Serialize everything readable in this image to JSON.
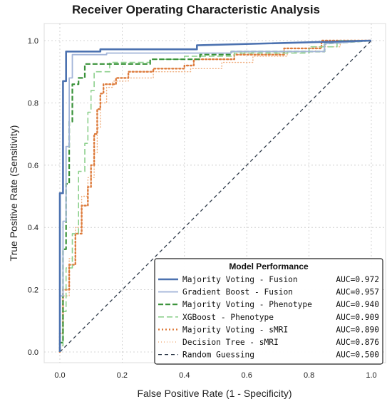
{
  "chart_data": {
    "type": "line",
    "title": "Receiver Operating Characteristic Analysis",
    "xlabel": "False Positive Rate (1 - Specificity)",
    "ylabel": "True Positive Rate (Sensitivity)",
    "xlim": [
      0,
      1
    ],
    "ylim": [
      0,
      1
    ],
    "xticks": [
      "0.0",
      "0.2",
      "0.4",
      "0.6",
      "0.8",
      "1.0"
    ],
    "yticks": [
      "0.0",
      "0.2",
      "0.4",
      "0.6",
      "0.8",
      "1.0"
    ],
    "grid": true,
    "legend": {
      "title": "Model Performance",
      "placement": "bottom-right"
    },
    "series": [
      {
        "name": "Majority Voting - Fusion",
        "auc": "AUC=0.972",
        "color": "#4c72b0",
        "dash": "solid",
        "width": 2.6,
        "points": [
          [
            0,
            0
          ],
          [
            0,
            0.31
          ],
          [
            0,
            0.51
          ],
          [
            0.01,
            0.51
          ],
          [
            0.01,
            0.87
          ],
          [
            0.02,
            0.87
          ],
          [
            0.02,
            0.965
          ],
          [
            0.13,
            0.965
          ],
          [
            0.13,
            0.972
          ],
          [
            0.44,
            0.972
          ],
          [
            0.44,
            0.985
          ],
          [
            1,
            1
          ]
        ]
      },
      {
        "name": "Gradient Boost - Fusion",
        "auc": "AUC=0.957",
        "color": "#a3b5d9",
        "dash": "solid",
        "width": 1.8,
        "points": [
          [
            0,
            0
          ],
          [
            0,
            0.18
          ],
          [
            0.01,
            0.18
          ],
          [
            0.01,
            0.42
          ],
          [
            0.02,
            0.42
          ],
          [
            0.02,
            0.66
          ],
          [
            0.03,
            0.66
          ],
          [
            0.03,
            0.88
          ],
          [
            0.04,
            0.88
          ],
          [
            0.04,
            0.955
          ],
          [
            0.15,
            0.955
          ],
          [
            0.15,
            0.96
          ],
          [
            0.55,
            0.96
          ],
          [
            0.55,
            0.965
          ],
          [
            0.85,
            0.965
          ],
          [
            0.85,
            0.99
          ],
          [
            1,
            1
          ]
        ]
      },
      {
        "name": "Majority Voting - Phenotype",
        "auc": "AUC=0.940",
        "color": "#3a923a",
        "dash": "7,3",
        "width": 2.2,
        "points": [
          [
            0,
            0
          ],
          [
            0,
            0.03
          ],
          [
            0.01,
            0.03
          ],
          [
            0.01,
            0.33
          ],
          [
            0.02,
            0.33
          ],
          [
            0.02,
            0.54
          ],
          [
            0.03,
            0.54
          ],
          [
            0.03,
            0.74
          ],
          [
            0.04,
            0.74
          ],
          [
            0.04,
            0.86
          ],
          [
            0.06,
            0.86
          ],
          [
            0.06,
            0.88
          ],
          [
            0.08,
            0.88
          ],
          [
            0.08,
            0.925
          ],
          [
            0.29,
            0.925
          ],
          [
            0.29,
            0.94
          ],
          [
            0.45,
            0.94
          ],
          [
            0.45,
            0.955
          ],
          [
            0.55,
            0.955
          ],
          [
            0.55,
            0.965
          ],
          [
            0.85,
            0.965
          ],
          [
            0.85,
            0.99
          ],
          [
            1,
            1
          ]
        ]
      },
      {
        "name": "XGBoost - Phenotype",
        "auc": "AUC=0.909",
        "color": "#8dd08d",
        "dash": "8,4",
        "width": 1.6,
        "points": [
          [
            0,
            0
          ],
          [
            0,
            0.02
          ],
          [
            0.01,
            0.02
          ],
          [
            0.01,
            0.13
          ],
          [
            0.02,
            0.13
          ],
          [
            0.02,
            0.27
          ],
          [
            0.04,
            0.27
          ],
          [
            0.04,
            0.38
          ],
          [
            0.06,
            0.38
          ],
          [
            0.06,
            0.58
          ],
          [
            0.08,
            0.58
          ],
          [
            0.08,
            0.67
          ],
          [
            0.09,
            0.67
          ],
          [
            0.09,
            0.77
          ],
          [
            0.1,
            0.77
          ],
          [
            0.1,
            0.84
          ],
          [
            0.11,
            0.84
          ],
          [
            0.11,
            0.9
          ],
          [
            0.16,
            0.9
          ],
          [
            0.16,
            0.93
          ],
          [
            0.29,
            0.93
          ],
          [
            0.29,
            0.94
          ],
          [
            0.4,
            0.94
          ],
          [
            0.4,
            0.95
          ],
          [
            0.56,
            0.95
          ],
          [
            0.56,
            0.96
          ],
          [
            0.8,
            0.96
          ],
          [
            0.8,
            0.98
          ],
          [
            0.89,
            0.98
          ],
          [
            0.89,
            1
          ],
          [
            1,
            1
          ]
        ]
      },
      {
        "name": "Majority Voting - sMRI",
        "auc": "AUC=0.890",
        "color": "#dd7b3c",
        "dash": "2,3",
        "width": 2.4,
        "points": [
          [
            0,
            0
          ],
          [
            0,
            0.06
          ],
          [
            0.01,
            0.06
          ],
          [
            0.01,
            0.2
          ],
          [
            0.03,
            0.2
          ],
          [
            0.03,
            0.28
          ],
          [
            0.05,
            0.28
          ],
          [
            0.05,
            0.38
          ],
          [
            0.07,
            0.38
          ],
          [
            0.07,
            0.47
          ],
          [
            0.09,
            0.47
          ],
          [
            0.09,
            0.53
          ],
          [
            0.1,
            0.53
          ],
          [
            0.1,
            0.6
          ],
          [
            0.11,
            0.6
          ],
          [
            0.11,
            0.7
          ],
          [
            0.12,
            0.7
          ],
          [
            0.12,
            0.78
          ],
          [
            0.13,
            0.78
          ],
          [
            0.13,
            0.83
          ],
          [
            0.14,
            0.83
          ],
          [
            0.14,
            0.86
          ],
          [
            0.18,
            0.86
          ],
          [
            0.18,
            0.88
          ],
          [
            0.22,
            0.88
          ],
          [
            0.22,
            0.9
          ],
          [
            0.3,
            0.9
          ],
          [
            0.3,
            0.91
          ],
          [
            0.4,
            0.91
          ],
          [
            0.4,
            0.92
          ],
          [
            0.43,
            0.92
          ],
          [
            0.43,
            0.94
          ],
          [
            0.56,
            0.94
          ],
          [
            0.56,
            0.955
          ],
          [
            0.72,
            0.955
          ],
          [
            0.72,
            0.975
          ],
          [
            0.84,
            0.975
          ],
          [
            0.84,
            1
          ],
          [
            1,
            1
          ]
        ]
      },
      {
        "name": "Decision Tree - sMRI",
        "auc": "AUC=0.876",
        "color": "#f0b081",
        "dash": "1,3",
        "width": 1.4,
        "points": [
          [
            0,
            0
          ],
          [
            0,
            0.02
          ],
          [
            0.01,
            0.02
          ],
          [
            0.01,
            0.18
          ],
          [
            0.03,
            0.18
          ],
          [
            0.03,
            0.3
          ],
          [
            0.05,
            0.3
          ],
          [
            0.05,
            0.4
          ],
          [
            0.07,
            0.4
          ],
          [
            0.07,
            0.5
          ],
          [
            0.09,
            0.5
          ],
          [
            0.09,
            0.56
          ],
          [
            0.11,
            0.56
          ],
          [
            0.11,
            0.64
          ],
          [
            0.12,
            0.64
          ],
          [
            0.12,
            0.72
          ],
          [
            0.13,
            0.72
          ],
          [
            0.13,
            0.8
          ],
          [
            0.15,
            0.8
          ],
          [
            0.15,
            0.85
          ],
          [
            0.17,
            0.85
          ],
          [
            0.17,
            0.87
          ],
          [
            0.22,
            0.87
          ],
          [
            0.22,
            0.88
          ],
          [
            0.3,
            0.88
          ],
          [
            0.3,
            0.9
          ],
          [
            0.42,
            0.9
          ],
          [
            0.42,
            0.91
          ],
          [
            0.52,
            0.91
          ],
          [
            0.52,
            0.93
          ],
          [
            0.62,
            0.93
          ],
          [
            0.62,
            0.95
          ],
          [
            0.73,
            0.95
          ],
          [
            0.73,
            0.965
          ],
          [
            0.82,
            0.965
          ],
          [
            0.82,
            0.98
          ],
          [
            0.9,
            0.98
          ],
          [
            0.9,
            1
          ],
          [
            1,
            1
          ]
        ]
      },
      {
        "name": "Random Guessing",
        "auc": "AUC=0.500",
        "color": "#2f3b4a",
        "dash": "5,4",
        "width": 1.3,
        "points": [
          [
            0,
            0
          ],
          [
            1,
            1
          ]
        ]
      }
    ]
  }
}
